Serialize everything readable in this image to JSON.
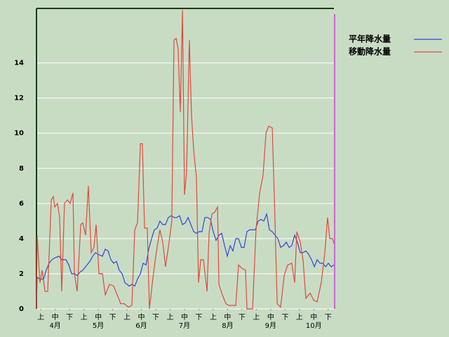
{
  "chart_data": {
    "type": "line",
    "xlim": [
      0,
      208
    ],
    "ylim": [
      0,
      17.1
    ],
    "yticks": [
      0,
      2,
      4,
      6,
      8,
      10,
      12,
      14
    ],
    "xticks": [
      {
        "value": 3,
        "label": "上"
      },
      {
        "value": 13,
        "label": "中"
      },
      {
        "value": 23,
        "label": "下"
      },
      {
        "value": 33,
        "label": "上"
      },
      {
        "value": 43,
        "label": "中"
      },
      {
        "value": 53,
        "label": "下"
      },
      {
        "value": 63,
        "label": "上"
      },
      {
        "value": 73,
        "label": "中"
      },
      {
        "value": 83,
        "label": "下"
      },
      {
        "value": 93,
        "label": "上"
      },
      {
        "value": 103,
        "label": "中"
      },
      {
        "value": 113,
        "label": "下"
      },
      {
        "value": 123,
        "label": "上"
      },
      {
        "value": 133,
        "label": "中"
      },
      {
        "value": 143,
        "label": "下"
      },
      {
        "value": 153,
        "label": "上"
      },
      {
        "value": 163,
        "label": "中"
      },
      {
        "value": 173,
        "label": "下"
      },
      {
        "value": 183,
        "label": "上"
      },
      {
        "value": 193,
        "label": "中"
      },
      {
        "value": 203,
        "label": "下"
      }
    ],
    "month_labels": [
      {
        "value": 13,
        "label": "4月"
      },
      {
        "value": 43,
        "label": "5月"
      },
      {
        "value": 73,
        "label": "6月"
      },
      {
        "value": 103,
        "label": "7月"
      },
      {
        "value": 133,
        "label": "8月"
      },
      {
        "value": 163,
        "label": "9月"
      },
      {
        "value": 193,
        "label": "10月"
      }
    ],
    "grid": true,
    "marker_line": {
      "value": 207.5,
      "color": "#cc66cc"
    },
    "series": [
      {
        "name": "平年降水量",
        "color": "#3344dd",
        "x": [
          0,
          0.5,
          2.4,
          4.9,
          6.8,
          8.8,
          10.7,
          12.7,
          15.6,
          17.6,
          20.5,
          22.5,
          24.4,
          26.4,
          28.3,
          30.3,
          32.2,
          34.2,
          37.1,
          39.1,
          41.0,
          43.0,
          45.9,
          47.9,
          49.8,
          51.8,
          53.7,
          55.7,
          57.6,
          59.6,
          61.5,
          64.5,
          66.4,
          68.4,
          70.3,
          72.3,
          74.2,
          76.2,
          78.1,
          80.1,
          82.0,
          84.0,
          85.9,
          87.9,
          89.8,
          91.8,
          93.8,
          95.7,
          97.7,
          99.6,
          101.6,
          103.5,
          105.5,
          107.4,
          109.4,
          111.3,
          113.3,
          115.2,
          117.2,
          119.1,
          121.1,
          123.0,
          125.0,
          127.0,
          128.9,
          130.9,
          132.8,
          134.8,
          136.7,
          138.7,
          140.6,
          142.6,
          144.5,
          146.5,
          148.4,
          150.4,
          152.3,
          154.3,
          156.3,
          158.2,
          160.2,
          162.1,
          164.1,
          166.0,
          168.0,
          169.9,
          171.9,
          173.8,
          175.8,
          177.7,
          179.7,
          181.6,
          183.6,
          185.5,
          187.5,
          189.5,
          191.4,
          193.4,
          195.3,
          197.3,
          199.2,
          201.2,
          203.1,
          205.1,
          207.0,
          208.0
        ],
        "values": [
          0,
          1.8,
          1.7,
          1.7,
          2.2,
          2.6,
          2.8,
          2.9,
          3.0,
          2.8,
          2.8,
          2.5,
          2.0,
          2.0,
          1.9,
          2.1,
          2.2,
          2.4,
          2.7,
          3.0,
          3.2,
          3.1,
          3.0,
          3.4,
          3.3,
          2.8,
          2.6,
          2.7,
          2.2,
          2.0,
          1.5,
          1.3,
          1.4,
          1.3,
          1.7,
          2.0,
          2.6,
          2.5,
          3.4,
          4.0,
          4.5,
          4.6,
          5.0,
          4.8,
          4.8,
          5.2,
          5.3,
          5.2,
          5.2,
          5.3,
          4.8,
          4.9,
          5.2,
          4.8,
          4.4,
          4.3,
          4.4,
          4.4,
          5.2,
          5.2,
          5.1,
          4.4,
          3.9,
          4.2,
          4.3,
          3.6,
          3.0,
          3.6,
          3.3,
          4.0,
          4.0,
          3.5,
          3.5,
          4.4,
          4.5,
          4.5,
          4.5,
          5.0,
          5.1,
          5.0,
          5.4,
          4.5,
          4.4,
          4.2,
          4.0,
          3.5,
          3.6,
          3.8,
          3.5,
          3.6,
          4.2,
          3.8,
          3.2,
          3.2,
          3.3,
          3.1,
          2.8,
          2.4,
          2.8,
          2.6,
          2.6,
          2.4,
          2.6,
          2.4,
          2.5,
          2.5
        ]
      },
      {
        "name": "移動降水量",
        "color": "#e04a3a",
        "x": [
          0,
          0.5,
          2.4,
          3.9,
          5.9,
          7.8,
          10.3,
          11.7,
          12.7,
          14.6,
          16.1,
          17.6,
          19.5,
          21.5,
          23.4,
          25.4,
          26.4,
          28.3,
          30.8,
          32.2,
          34.2,
          36.1,
          38.1,
          40.0,
          41.5,
          43.5,
          45.9,
          47.9,
          50.8,
          53.7,
          56.2,
          58.6,
          61.0,
          64.0,
          66.4,
          68.4,
          70.3,
          72.3,
          73.7,
          75.2,
          77.1,
          78.6,
          81.1,
          83.0,
          85.9,
          87.9,
          89.8,
          91.8,
          94.2,
          95.7,
          97.2,
          98.6,
          100.1,
          101.6,
          103.0,
          104.5,
          106.4,
          107.9,
          109.4,
          111.3,
          112.8,
          114.3,
          116.2,
          118.7,
          120.1,
          122.1,
          124.0,
          126.0,
          127.0,
          129.4,
          131.8,
          133.8,
          136.7,
          138.7,
          140.6,
          143.1,
          145.5,
          146.5,
          150.4,
          152.8,
          155.3,
          157.7,
          159.7,
          161.6,
          164.1,
          166.0,
          167.5,
          169.9,
          172.4,
          174.8,
          177.7,
          179.7,
          181.2,
          183.6,
          185.5,
          187.5,
          190.4,
          192.9,
          195.3,
          198.2,
          200.7,
          202.6,
          204.1,
          206.1,
          207.5
        ],
        "values": [
          0,
          4.2,
          1.5,
          2.2,
          1.0,
          1.0,
          6.2,
          6.4,
          5.8,
          6.0,
          5.2,
          1.0,
          6.0,
          6.2,
          6.0,
          6.6,
          2.0,
          1.0,
          4.8,
          4.9,
          4.2,
          7.0,
          3.2,
          3.5,
          4.8,
          2.0,
          2.0,
          0.8,
          1.4,
          1.3,
          0.8,
          0.3,
          0.3,
          0.1,
          0.2,
          4.5,
          4.9,
          9.4,
          9.4,
          4.6,
          4.6,
          0,
          1.8,
          3.0,
          4.5,
          3.8,
          2.4,
          3.5,
          5.0,
          15.3,
          15.4,
          14.8,
          11.2,
          17.0,
          6.5,
          7.8,
          15.3,
          11.0,
          9.0,
          7.5,
          1.5,
          2.8,
          2.8,
          1.0,
          4.3,
          5.4,
          5.5,
          5.8,
          1.4,
          0.8,
          0.3,
          0.2,
          0.2,
          0.2,
          2.5,
          2.3,
          2.2,
          0,
          0,
          4.5,
          6.6,
          7.6,
          10.0,
          10.4,
          10.3,
          5.0,
          0.3,
          0.1,
          1.9,
          2.5,
          2.6,
          1.5,
          4.4,
          3.8,
          2.8,
          0.6,
          0.9,
          0.5,
          0.4,
          1.5,
          3.2,
          5.2,
          4.0,
          4.0,
          3.6
        ]
      }
    ]
  }
}
